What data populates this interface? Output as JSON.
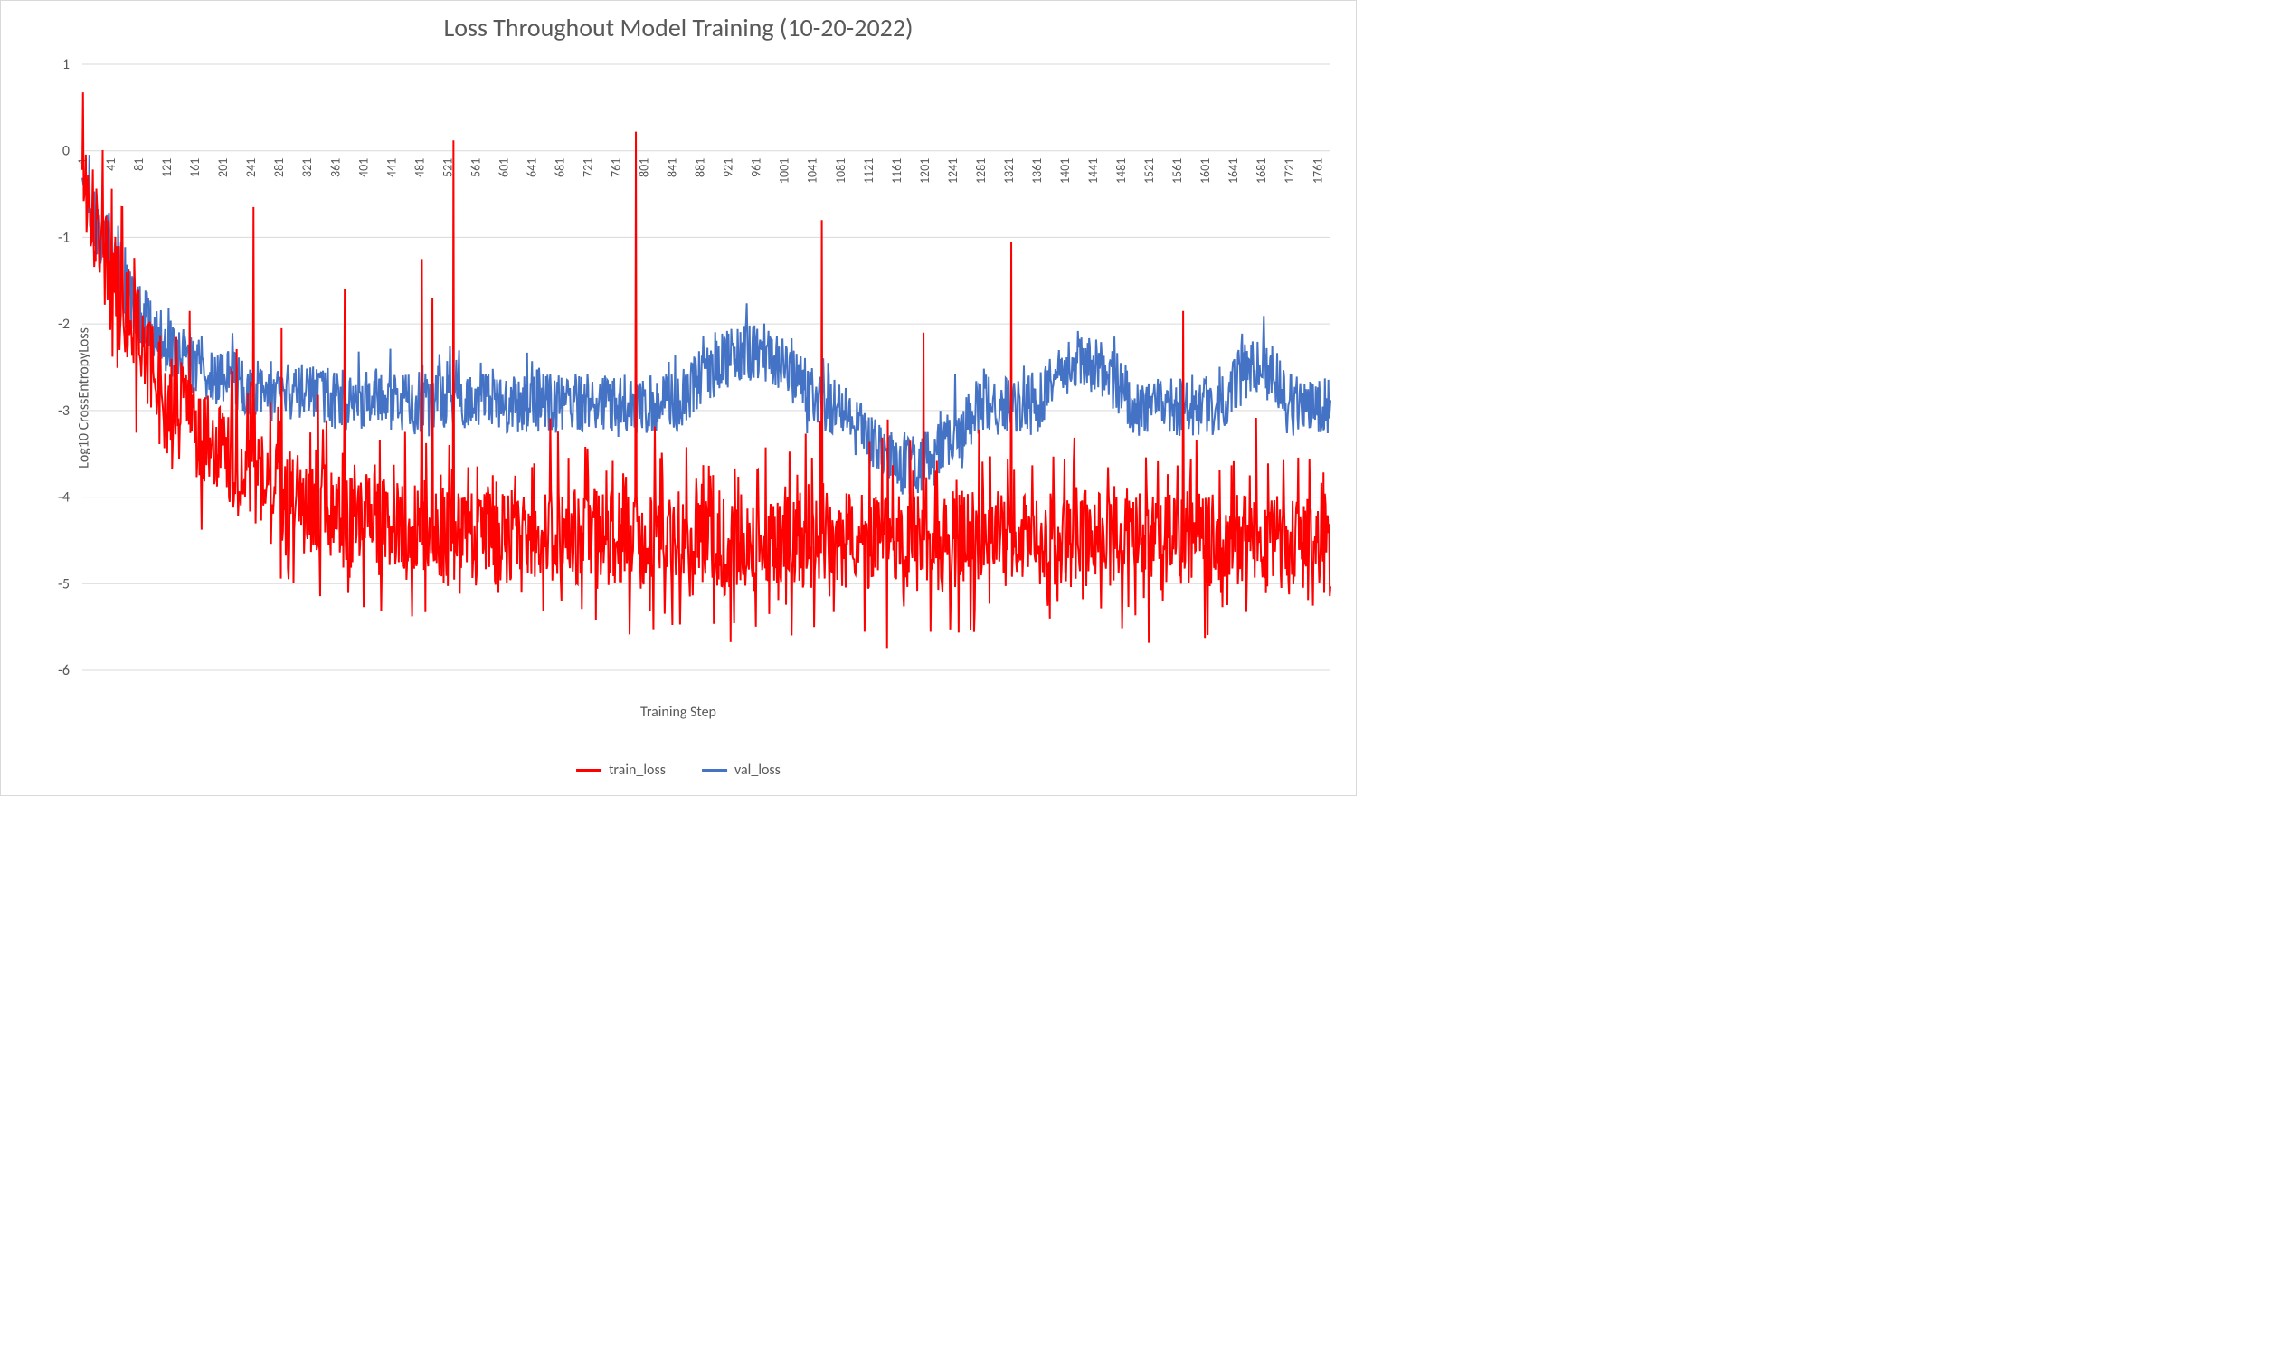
{
  "chart": {
    "type": "line",
    "title": "Loss Throughout Model Training (10-20-2022)",
    "title_fontsize": 28,
    "title_color": "#595959",
    "background_color": "#ffffff",
    "border_color": "#d9d9d9",
    "grid_color": "#d9d9d9",
    "axis_label_color": "#595959",
    "tick_label_color": "#595959",
    "x_axis": {
      "title": "Training Step",
      "min": 1,
      "max": 1780,
      "tick_start": 1,
      "tick_step": 40,
      "tick_label_rotation_deg": -90,
      "tick_fontsize": 14,
      "labels": [
        "1",
        "41",
        "81",
        "121",
        "161",
        "201",
        "241",
        "281",
        "321",
        "361",
        "401",
        "441",
        "481",
        "521",
        "561",
        "601",
        "641",
        "681",
        "721",
        "761",
        "801",
        "841",
        "881",
        "921",
        "961",
        "1001",
        "1041",
        "1081",
        "1121",
        "1161",
        "1201",
        "1241",
        "1281",
        "1321",
        "1361",
        "1401",
        "1441",
        "1481",
        "1521",
        "1561",
        "1601",
        "1641",
        "1681",
        "1721",
        "1761"
      ]
    },
    "y_axis": {
      "title": "Log10 CrossEntropyLoss",
      "min": -6,
      "max": 1,
      "tick_step": 1,
      "tick_fontsize": 16,
      "axis_crosses_at": 0
    },
    "legend": {
      "position": "bottom",
      "fontsize": 16,
      "items": [
        {
          "label": "train_loss",
          "color": "#ff0000"
        },
        {
          "label": "val_loss",
          "color": "#4472c4"
        }
      ]
    },
    "series": {
      "train_loss": {
        "color": "#ff0000",
        "line_width": 2,
        "n_points": 1780,
        "baseline_start": -0.3,
        "baseline_end": -4.5,
        "noise_amplitude": 0.55,
        "dense_spike_amplitude": 0.9,
        "tall_spikes_at_steps": [
          {
            "x": 245,
            "y": -0.65
          },
          {
            "x": 285,
            "y": -2.05
          },
          {
            "x": 375,
            "y": -1.6
          },
          {
            "x": 485,
            "y": -1.25
          },
          {
            "x": 500,
            "y": -1.7
          },
          {
            "x": 530,
            "y": 0.12
          },
          {
            "x": 790,
            "y": 0.22
          },
          {
            "x": 1055,
            "y": -0.8
          },
          {
            "x": 1200,
            "y": -2.1
          },
          {
            "x": 1325,
            "y": -1.05
          },
          {
            "x": 1570,
            "y": -1.85
          }
        ]
      },
      "val_loss": {
        "color": "#4472c4",
        "line_width": 2,
        "n_points": 1780,
        "baseline_start": -0.3,
        "baseline_mid": -2.9,
        "baseline_end": -3.0,
        "noise_amplitude": 0.35,
        "bump_regions": [
          {
            "x0": 850,
            "x1": 1050,
            "lift": 0.6
          },
          {
            "x0": 1360,
            "x1": 1500,
            "lift": 0.5
          },
          {
            "x0": 1630,
            "x1": 1720,
            "lift": 0.5
          }
        ],
        "dip_regions": [
          {
            "x0": 1080,
            "x1": 1280,
            "drop": 0.7
          }
        ]
      }
    }
  }
}
